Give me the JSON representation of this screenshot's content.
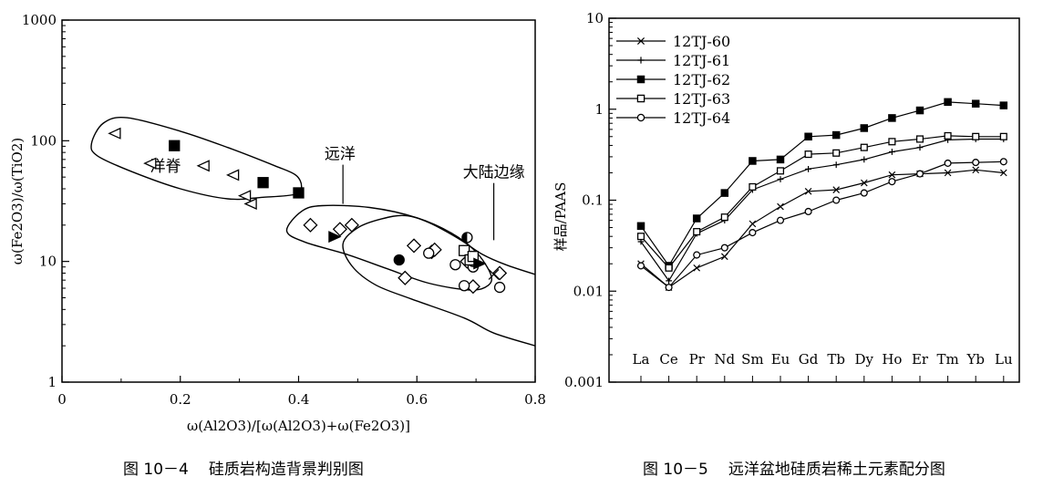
{
  "chart_data": [
    {
      "type": "scatter",
      "figure_label": "图 10－4",
      "title": "硅质岩构造背景判别图",
      "xlabel": "ω(Al2O3)/[ω(Al2O3)+ω(Fe2O3)]",
      "ylabel": "ω(Fe2O3)/ω(TiO2)",
      "xlim": [
        0,
        0.8
      ],
      "ylim": [
        1,
        1000
      ],
      "yscale": "log",
      "x_ticks": [
        "0",
        "0.2",
        "0.4",
        "0.6",
        "0.8"
      ],
      "x_tick_values": [
        0,
        0.2,
        0.4,
        0.6,
        0.8
      ],
      "y_ticks": [
        "1",
        "10",
        "100",
        "1000"
      ],
      "y_tick_values": [
        1,
        10,
        100,
        1000
      ],
      "fields": [
        {
          "name": "洋脊",
          "boundary": [
            [
              0.05,
              95
            ],
            [
              0.07,
              140
            ],
            [
              0.11,
              155
            ],
            [
              0.2,
              120
            ],
            [
              0.28,
              88
            ],
            [
              0.36,
              62
            ],
            [
              0.395,
              52
            ],
            [
              0.405,
              42
            ],
            [
              0.395,
              36
            ],
            [
              0.34,
              34
            ],
            [
              0.28,
              33
            ],
            [
              0.2,
              40
            ],
            [
              0.12,
              55
            ],
            [
              0.06,
              75
            ]
          ]
        },
        {
          "name": "远洋",
          "boundary": [
            [
              0.38,
              18
            ],
            [
              0.405,
              26
            ],
            [
              0.44,
              29
            ],
            [
              0.52,
              28
            ],
            [
              0.6,
              23
            ],
            [
              0.66,
              17
            ],
            [
              0.7,
              12
            ],
            [
              0.725,
              7.8
            ],
            [
              0.72,
              6.3
            ],
            [
              0.69,
              5.8
            ],
            [
              0.62,
              6.6
            ],
            [
              0.55,
              8.7
            ],
            [
              0.48,
              11.5
            ],
            [
              0.41,
              14.5
            ]
          ]
        },
        {
          "name": "大陆边缘",
          "boundary": [
            [
              0.8,
              2.0
            ],
            [
              0.73,
              2.55
            ],
            [
              0.68,
              3.4
            ],
            [
              0.59,
              4.9
            ],
            [
              0.53,
              6.4
            ],
            [
              0.49,
              9.2
            ],
            [
              0.475,
              14
            ],
            [
              0.5,
              19
            ],
            [
              0.54,
              22.5
            ],
            [
              0.58,
              24
            ],
            [
              0.62,
              21
            ],
            [
              0.67,
              15.5
            ],
            [
              0.71,
              11.5
            ],
            [
              0.75,
              9.4
            ],
            [
              0.8,
              7.8
            ]
          ]
        }
      ],
      "field_labels": [
        {
          "text": "洋脊",
          "x": 0.175,
          "y": 62
        },
        {
          "text": "远洋",
          "x": 0.47,
          "y": 78,
          "arrow_to": [
            0.475,
            30
          ]
        },
        {
          "text": "大陆边缘",
          "x": 0.73,
          "y": 55,
          "arrow_to": [
            0.73,
            15
          ]
        }
      ],
      "series": [
        {
          "marker": "open-triangle-left",
          "points": [
            [
              0.09,
              115
            ],
            [
              0.15,
              65
            ],
            [
              0.24,
              62
            ],
            [
              0.29,
              52
            ],
            [
              0.31,
              35
            ],
            [
              0.32,
              30
            ]
          ]
        },
        {
          "marker": "filled-square",
          "points": [
            [
              0.19,
              91
            ],
            [
              0.34,
              45
            ],
            [
              0.4,
              37
            ]
          ]
        },
        {
          "marker": "open-diamond",
          "points": [
            [
              0.42,
              20
            ],
            [
              0.47,
              18.5
            ],
            [
              0.49,
              20
            ],
            [
              0.58,
              7.3
            ],
            [
              0.595,
              13.5
            ],
            [
              0.625,
              12
            ],
            [
              0.63,
              12.5
            ],
            [
              0.685,
              10
            ],
            [
              0.695,
              6.2
            ],
            [
              0.74,
              8
            ]
          ]
        },
        {
          "marker": "filled-triangle-right",
          "points": [
            [
              0.46,
              16
            ]
          ]
        },
        {
          "marker": "filled-circle",
          "points": [
            [
              0.57,
              10.3
            ]
          ]
        },
        {
          "marker": "half-filled-circle",
          "points": [
            [
              0.685,
              15.8
            ]
          ]
        },
        {
          "marker": "open-circle",
          "points": [
            [
              0.62,
              11.7
            ],
            [
              0.665,
              9.4
            ],
            [
              0.68,
              6.3
            ],
            [
              0.695,
              9
            ],
            [
              0.695,
              10
            ],
            [
              0.74,
              6.1
            ]
          ]
        },
        {
          "marker": "open-square",
          "points": [
            [
              0.68,
              12.3
            ],
            [
              0.69,
              10.3
            ],
            [
              0.695,
              11
            ]
          ]
        },
        {
          "marker": "filled-triangle-right",
          "points": [
            [
              0.705,
              9.6
            ]
          ]
        },
        {
          "marker": "cross",
          "points": [
            [
              0.73,
              7.8
            ]
          ]
        }
      ]
    },
    {
      "type": "line",
      "figure_label": "图 10－5",
      "title": "远洋盆地硅质岩稀土元素配分图",
      "xlabel": "",
      "ylabel": "样品/PAAS",
      "yscale": "log",
      "ylim": [
        0.001,
        10
      ],
      "y_ticks": [
        "0.001",
        "0.01",
        "0.1",
        "1",
        "10"
      ],
      "y_tick_values": [
        0.001,
        0.01,
        0.1,
        1,
        10
      ],
      "categories": [
        "La",
        "Ce",
        "Pr",
        "Nd",
        "Sm",
        "Eu",
        "Gd",
        "Tb",
        "Dy",
        "Ho",
        "Er",
        "Tm",
        "Yb",
        "Lu"
      ],
      "series": [
        {
          "name": "12TJ-60",
          "marker": "x",
          "values": [
            0.02,
            0.011,
            0.018,
            0.024,
            0.055,
            0.085,
            0.125,
            0.13,
            0.155,
            0.19,
            0.195,
            0.2,
            0.215,
            0.2
          ]
        },
        {
          "name": "12TJ-61",
          "marker": "plus",
          "values": [
            0.035,
            0.013,
            0.043,
            0.06,
            0.13,
            0.17,
            0.22,
            0.245,
            0.28,
            0.34,
            0.38,
            0.46,
            0.47,
            0.47
          ]
        },
        {
          "name": "12TJ-62",
          "marker": "filled-square",
          "values": [
            0.052,
            0.019,
            0.063,
            0.12,
            0.27,
            0.28,
            0.5,
            0.52,
            0.62,
            0.8,
            0.97,
            1.2,
            1.15,
            1.1
          ]
        },
        {
          "name": "12TJ-63",
          "marker": "open-square",
          "values": [
            0.04,
            0.018,
            0.045,
            0.065,
            0.14,
            0.21,
            0.32,
            0.33,
            0.38,
            0.44,
            0.47,
            0.51,
            0.5,
            0.5
          ]
        },
        {
          "name": "12TJ-64",
          "marker": "open-circle",
          "values": [
            0.019,
            0.011,
            0.025,
            0.03,
            0.044,
            0.06,
            0.075,
            0.1,
            0.12,
            0.16,
            0.195,
            0.255,
            0.26,
            0.265
          ]
        }
      ]
    }
  ]
}
